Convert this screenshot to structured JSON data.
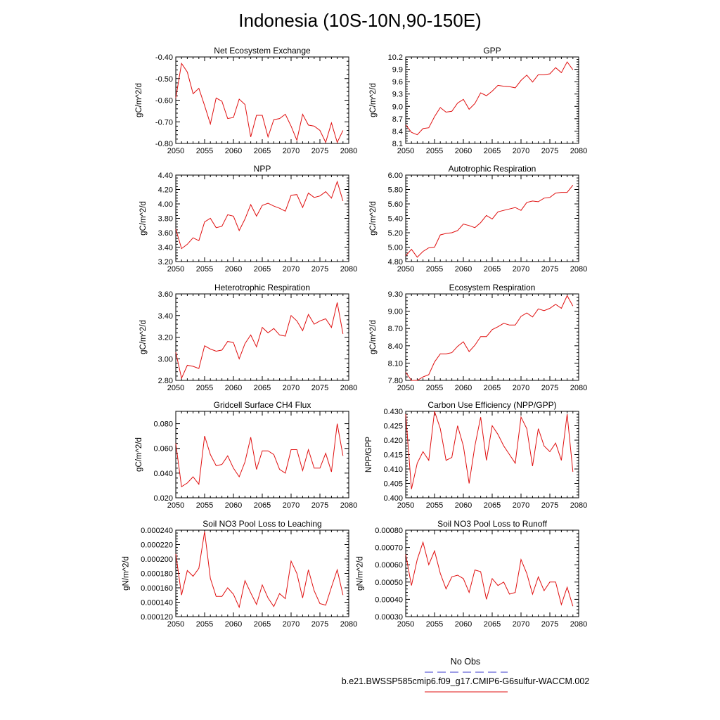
{
  "figure": {
    "title": "Indonesia (10S-10N,90-150E)",
    "legend": {
      "obs_label": "No Obs",
      "obs_color": "#3a3acc",
      "model_label": "b.e21.BWSSP585cmip6.f09_g17.CMIP6-G6sulfur-WACCM.002",
      "model_color": "#e01010"
    }
  },
  "chart_data": [
    {
      "type": "line",
      "title": "Net Ecosystem Exchange",
      "ylabel": "gC/m^2/d",
      "xlim": [
        2050,
        2080
      ],
      "ylim": [
        -0.8,
        -0.4
      ],
      "xticks": [
        "2050",
        "2055",
        "2060",
        "2065",
        "2070",
        "2075",
        "2080"
      ],
      "yticks": [
        "-0.80",
        "-0.70",
        "-0.60",
        "-0.50",
        "-0.40"
      ],
      "series": [
        {
          "color": "#e01010",
          "x": [
            2050,
            2051,
            2052,
            2053,
            2054,
            2055,
            2056,
            2057,
            2058,
            2059,
            2060,
            2061,
            2062,
            2063,
            2064,
            2065,
            2066,
            2067,
            2068,
            2069,
            2070,
            2071,
            2072,
            2073,
            2074,
            2075,
            2076,
            2077,
            2078,
            2079
          ],
          "y": [
            -0.59,
            -0.43,
            -0.47,
            -0.57,
            -0.545,
            -0.625,
            -0.71,
            -0.59,
            -0.605,
            -0.685,
            -0.68,
            -0.595,
            -0.62,
            -0.77,
            -0.67,
            -0.67,
            -0.77,
            -0.69,
            -0.685,
            -0.665,
            -0.72,
            -0.785,
            -0.665,
            -0.715,
            -0.72,
            -0.74,
            -0.795,
            -0.705,
            -0.795,
            -0.74
          ]
        }
      ]
    },
    {
      "type": "line",
      "title": "GPP",
      "ylabel": "gC/m^2/d",
      "xlim": [
        2050,
        2080
      ],
      "ylim": [
        8.1,
        10.2
      ],
      "xticks": [
        "2050",
        "2055",
        "2060",
        "2065",
        "2070",
        "2075",
        "2080"
      ],
      "yticks": [
        "8.1",
        "8.4",
        "8.7",
        "9.0",
        "9.3",
        "9.6",
        "9.9",
        "10.2"
      ],
      "series": [
        {
          "color": "#e01010",
          "x": [
            2050,
            2051,
            2052,
            2053,
            2054,
            2055,
            2056,
            2057,
            2058,
            2059,
            2060,
            2061,
            2062,
            2063,
            2064,
            2065,
            2066,
            2067,
            2068,
            2069,
            2070,
            2071,
            2072,
            2073,
            2074,
            2075,
            2076,
            2077,
            2078,
            2079
          ],
          "y": [
            8.55,
            8.37,
            8.31,
            8.46,
            8.48,
            8.75,
            8.97,
            8.86,
            8.88,
            9.08,
            9.17,
            8.93,
            9.07,
            9.33,
            9.26,
            9.37,
            9.51,
            9.49,
            9.48,
            9.45,
            9.63,
            9.76,
            9.59,
            9.77,
            9.77,
            9.79,
            9.94,
            9.82,
            10.08,
            9.89
          ]
        }
      ]
    },
    {
      "type": "line",
      "title": "NPP",
      "ylabel": "gC/m^2/d",
      "xlim": [
        2050,
        2080
      ],
      "ylim": [
        3.2,
        4.4
      ],
      "xticks": [
        "2050",
        "2055",
        "2060",
        "2065",
        "2070",
        "2075",
        "2080"
      ],
      "yticks": [
        "3.20",
        "3.40",
        "3.60",
        "3.80",
        "4.00",
        "4.20",
        "4.40"
      ],
      "series": [
        {
          "color": "#e01010",
          "x": [
            2050,
            2051,
            2052,
            2053,
            2054,
            2055,
            2056,
            2057,
            2058,
            2059,
            2060,
            2061,
            2062,
            2063,
            2064,
            2065,
            2066,
            2067,
            2068,
            2069,
            2070,
            2071,
            2072,
            2073,
            2074,
            2075,
            2076,
            2077,
            2078,
            2079
          ],
          "y": [
            3.65,
            3.38,
            3.44,
            3.53,
            3.49,
            3.75,
            3.8,
            3.67,
            3.69,
            3.85,
            3.83,
            3.63,
            3.79,
            3.99,
            3.83,
            3.98,
            4.01,
            3.97,
            3.94,
            3.9,
            4.12,
            4.13,
            3.95,
            4.15,
            4.09,
            4.11,
            4.17,
            4.08,
            4.31,
            4.04
          ]
        }
      ]
    },
    {
      "type": "line",
      "title": "Autotrophic Respiration",
      "ylabel": "gC/m^2/d",
      "xlim": [
        2050,
        2080
      ],
      "ylim": [
        4.8,
        6.0
      ],
      "xticks": [
        "2050",
        "2055",
        "2060",
        "2065",
        "2070",
        "2075",
        "2080"
      ],
      "yticks": [
        "4.80",
        "5.00",
        "5.20",
        "5.40",
        "5.60",
        "5.80",
        "6.00"
      ],
      "series": [
        {
          "color": "#e01010",
          "x": [
            2050,
            2051,
            2052,
            2053,
            2054,
            2055,
            2056,
            2057,
            2058,
            2059,
            2060,
            2061,
            2062,
            2063,
            2064,
            2065,
            2066,
            2067,
            2068,
            2069,
            2070,
            2071,
            2072,
            2073,
            2074,
            2075,
            2076,
            2077,
            2078,
            2079
          ],
          "y": [
            4.88,
            4.97,
            4.86,
            4.94,
            4.99,
            5.0,
            5.17,
            5.19,
            5.2,
            5.23,
            5.32,
            5.3,
            5.27,
            5.34,
            5.44,
            5.39,
            5.49,
            5.51,
            5.53,
            5.55,
            5.51,
            5.62,
            5.64,
            5.63,
            5.68,
            5.69,
            5.75,
            5.76,
            5.76,
            5.86
          ]
        }
      ]
    },
    {
      "type": "line",
      "title": "Heterotrophic Respiration",
      "ylabel": "gC/m^2/d",
      "xlim": [
        2050,
        2080
      ],
      "ylim": [
        2.8,
        3.6
      ],
      "xticks": [
        "2050",
        "2055",
        "2060",
        "2065",
        "2070",
        "2075",
        "2080"
      ],
      "yticks": [
        "2.80",
        "3.00",
        "3.20",
        "3.40",
        "3.60"
      ],
      "series": [
        {
          "color": "#e01010",
          "x": [
            2050,
            2051,
            2052,
            2053,
            2054,
            2055,
            2056,
            2057,
            2058,
            2059,
            2060,
            2061,
            2062,
            2063,
            2064,
            2065,
            2066,
            2067,
            2068,
            2069,
            2070,
            2071,
            2072,
            2073,
            2074,
            2075,
            2076,
            2077,
            2078,
            2079
          ],
          "y": [
            3.06,
            2.82,
            2.94,
            2.93,
            2.91,
            3.12,
            3.09,
            3.07,
            3.08,
            3.16,
            3.15,
            3.0,
            3.14,
            3.22,
            3.11,
            3.29,
            3.24,
            3.28,
            3.22,
            3.21,
            3.4,
            3.35,
            3.26,
            3.41,
            3.32,
            3.35,
            3.37,
            3.29,
            3.52,
            3.23
          ]
        }
      ]
    },
    {
      "type": "line",
      "title": "Ecosystem Respiration",
      "ylabel": "gC/m^2/d",
      "xlim": [
        2050,
        2080
      ],
      "ylim": [
        7.8,
        9.3
      ],
      "xticks": [
        "2050",
        "2055",
        "2060",
        "2065",
        "2070",
        "2075",
        "2080"
      ],
      "yticks": [
        "7.80",
        "8.10",
        "8.40",
        "8.70",
        "9.00",
        "9.30"
      ],
      "series": [
        {
          "color": "#e01010",
          "x": [
            2050,
            2051,
            2052,
            2053,
            2054,
            2055,
            2056,
            2057,
            2058,
            2059,
            2060,
            2061,
            2062,
            2063,
            2064,
            2065,
            2066,
            2067,
            2068,
            2069,
            2070,
            2071,
            2072,
            2073,
            2074,
            2075,
            2076,
            2077,
            2078,
            2079
          ],
          "y": [
            7.94,
            7.8,
            7.8,
            7.86,
            7.9,
            8.12,
            8.26,
            8.26,
            8.28,
            8.39,
            8.47,
            8.3,
            8.41,
            8.56,
            8.56,
            8.68,
            8.73,
            8.79,
            8.76,
            8.76,
            8.91,
            8.97,
            8.9,
            9.04,
            9.01,
            9.05,
            9.12,
            9.05,
            9.27,
            9.09
          ]
        }
      ]
    },
    {
      "type": "line",
      "title": "Gridcell Surface CH4 Flux",
      "ylabel": "gC/m^2/d",
      "xlim": [
        2050,
        2080
      ],
      "ylim": [
        0.02,
        0.09
      ],
      "xticks": [
        "2050",
        "2055",
        "2060",
        "2065",
        "2070",
        "2075",
        "2080"
      ],
      "yticks": [
        "0.020",
        "0.040",
        "0.060",
        "0.080"
      ],
      "series": [
        {
          "color": "#e01010",
          "x": [
            2050,
            2051,
            2052,
            2053,
            2054,
            2055,
            2056,
            2057,
            2058,
            2059,
            2060,
            2061,
            2062,
            2063,
            2064,
            2065,
            2066,
            2067,
            2068,
            2069,
            2070,
            2071,
            2072,
            2073,
            2074,
            2075,
            2076,
            2077,
            2078,
            2079
          ],
          "y": [
            0.064,
            0.029,
            0.032,
            0.037,
            0.031,
            0.07,
            0.055,
            0.046,
            0.047,
            0.054,
            0.044,
            0.037,
            0.049,
            0.069,
            0.043,
            0.058,
            0.058,
            0.055,
            0.043,
            0.04,
            0.059,
            0.059,
            0.042,
            0.059,
            0.044,
            0.044,
            0.056,
            0.041,
            0.08,
            0.054
          ]
        }
      ]
    },
    {
      "type": "line",
      "title": "Carbon Use Efficiency (NPP/GPP)",
      "ylabel": "NPP/GPP",
      "xlim": [
        2050,
        2080
      ],
      "ylim": [
        0.4,
        0.43
      ],
      "xticks": [
        "2050",
        "2055",
        "2060",
        "2065",
        "2070",
        "2075",
        "2080"
      ],
      "yticks": [
        "0.400",
        "0.405",
        "0.410",
        "0.415",
        "0.420",
        "0.425",
        "0.430"
      ],
      "series": [
        {
          "color": "#e01010",
          "x": [
            2050,
            2051,
            2052,
            2053,
            2054,
            2055,
            2056,
            2057,
            2058,
            2059,
            2060,
            2061,
            2062,
            2063,
            2064,
            2065,
            2066,
            2067,
            2068,
            2069,
            2070,
            2071,
            2072,
            2073,
            2074,
            2075,
            2076,
            2077,
            2078,
            2079
          ],
          "y": [
            0.429,
            0.403,
            0.412,
            0.416,
            0.413,
            0.43,
            0.424,
            0.413,
            0.414,
            0.425,
            0.418,
            0.405,
            0.418,
            0.428,
            0.413,
            0.425,
            0.422,
            0.418,
            0.415,
            0.412,
            0.428,
            0.424,
            0.411,
            0.424,
            0.418,
            0.416,
            0.419,
            0.413,
            0.429,
            0.409
          ]
        }
      ]
    },
    {
      "type": "line",
      "title": "Soil NO3 Pool Loss to Leaching",
      "ylabel": "gN/m^2/d",
      "xlim": [
        2050,
        2080
      ],
      "ylim": [
        0.00012,
        0.00024
      ],
      "xticks": [
        "2050",
        "2055",
        "2060",
        "2065",
        "2070",
        "2075",
        "2080"
      ],
      "yticks": [
        "0.000120",
        "0.000140",
        "0.000160",
        "0.000180",
        "0.000200",
        "0.000220",
        "0.000240"
      ],
      "series": [
        {
          "color": "#e01010",
          "x": [
            2050,
            2051,
            2052,
            2053,
            2054,
            2055,
            2056,
            2057,
            2058,
            2059,
            2060,
            2061,
            2062,
            2063,
            2064,
            2065,
            2066,
            2067,
            2068,
            2069,
            2070,
            2071,
            2072,
            2073,
            2074,
            2075,
            2076,
            2077,
            2078,
            2079
          ],
          "y": [
            0.000207,
            0.00015,
            0.000184,
            0.000176,
            0.000187,
            0.000238,
            0.000173,
            0.000148,
            0.000148,
            0.00016,
            0.000151,
            0.000133,
            0.00017,
            0.000153,
            0.000137,
            0.000164,
            0.000146,
            0.000134,
            0.000152,
            0.000145,
            0.000197,
            0.00018,
            0.000146,
            0.000185,
            0.000156,
            0.000138,
            0.000136,
            0.000161,
            0.000185,
            0.00015
          ]
        }
      ]
    },
    {
      "type": "line",
      "title": "Soil NO3 Pool Loss to Runoff",
      "ylabel": "gN/m^2/d",
      "xlim": [
        2050,
        2080
      ],
      "ylim": [
        0.0003,
        0.0008
      ],
      "xticks": [
        "2050",
        "2055",
        "2060",
        "2065",
        "2070",
        "2075",
        "2080"
      ],
      "yticks": [
        "0.00030",
        "0.00040",
        "0.00050",
        "0.00060",
        "0.00070",
        "0.00080"
      ],
      "series": [
        {
          "color": "#e01010",
          "x": [
            2050,
            2051,
            2052,
            2053,
            2054,
            2055,
            2056,
            2057,
            2058,
            2059,
            2060,
            2061,
            2062,
            2063,
            2064,
            2065,
            2066,
            2067,
            2068,
            2069,
            2070,
            2071,
            2072,
            2073,
            2074,
            2075,
            2076,
            2077,
            2078,
            2079
          ],
          "y": [
            0.00066,
            0.00048,
            0.00063,
            0.00073,
            0.0006,
            0.00068,
            0.00055,
            0.00046,
            0.00053,
            0.00054,
            0.00052,
            0.00044,
            0.00057,
            0.00056,
            0.0004,
            0.00052,
            0.00048,
            0.0005,
            0.00043,
            0.00044,
            0.00063,
            0.00055,
            0.00043,
            0.00053,
            0.00045,
            0.0005,
            0.0005,
            0.00037,
            0.00047,
            0.00036
          ]
        }
      ]
    }
  ]
}
